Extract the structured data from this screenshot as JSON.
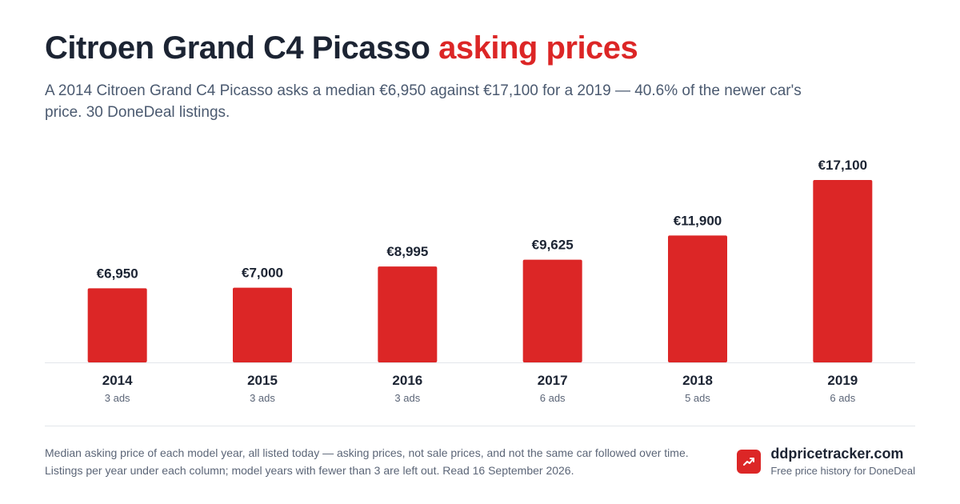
{
  "header": {
    "title_main": "Citroen Grand C4 Picasso",
    "title_accent": "asking prices",
    "subtitle": "A 2014 Citroen Grand C4 Picasso asks a median €6,950 against €17,100 for a 2019 — 40.6% of the newer car's price. 30 DoneDeal listings."
  },
  "colors": {
    "accent": "#dc2626",
    "text": "#1c2433",
    "muted": "#5b6577"
  },
  "chart_data": {
    "type": "bar",
    "categories": [
      "2014",
      "2015",
      "2016",
      "2017",
      "2018",
      "2019"
    ],
    "values": [
      6950,
      7000,
      8995,
      9625,
      11900,
      17100
    ],
    "value_labels": [
      "€6,950",
      "€7,000",
      "€8,995",
      "€9,625",
      "€11,900",
      "€17,100"
    ],
    "counts": [
      "3 ads",
      "3 ads",
      "3 ads",
      "6 ads",
      "5 ads",
      "6 ads"
    ],
    "ylim": [
      0,
      17100
    ],
    "grid": false,
    "legend": "none"
  },
  "footer": {
    "note": "Median asking price of each model year, all listed today — asking prices, not sale prices, and not the same car followed over time. Listings per year under each column; model years with fewer than 3 are left out. Read 16 September 2026.",
    "brand_name": "ddpricetracker.com",
    "brand_tagline": "Free price history for DoneDeal",
    "brand_icon": "trending-up-icon"
  }
}
